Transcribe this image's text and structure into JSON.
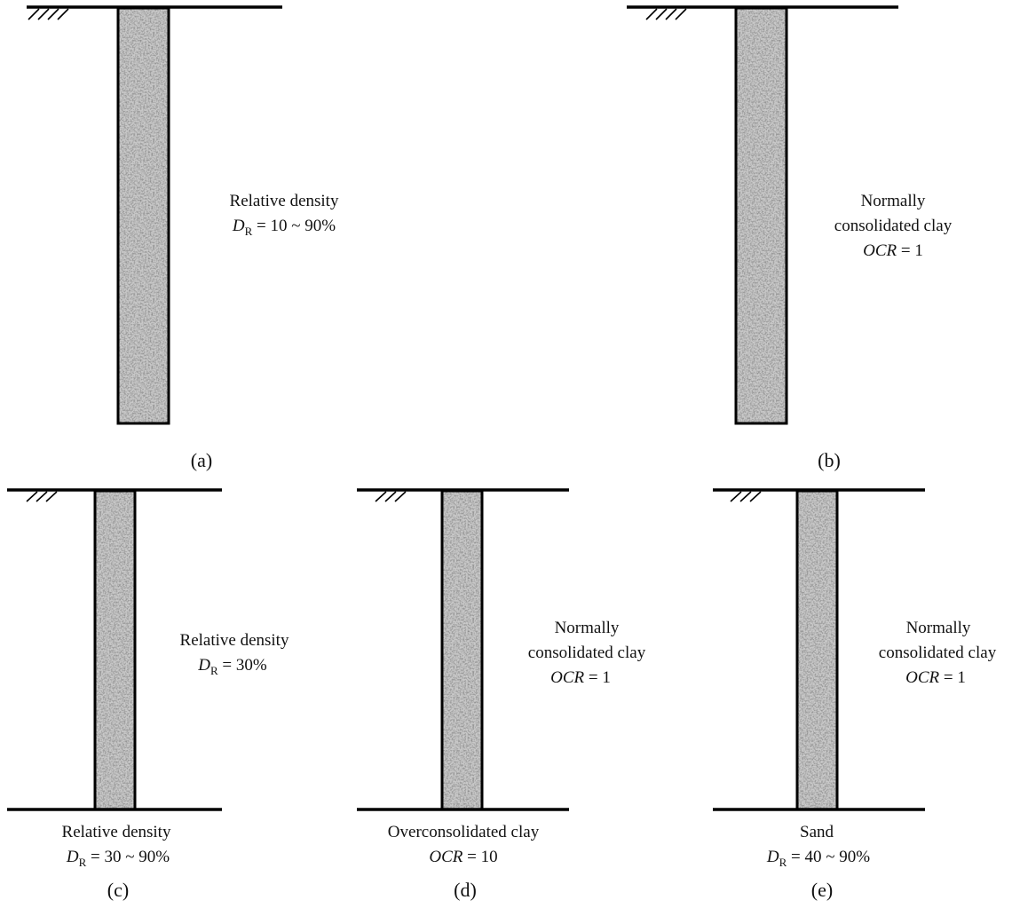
{
  "colors": {
    "ground_line": "#000000",
    "pile_fill": "#b8b8b8",
    "text": "#111111"
  },
  "icons": {
    "ground_hatch": "ground-hatch-icon",
    "pile_texture": "speckled-granular-texture"
  },
  "panels": [
    {
      "id": "a",
      "tag": "(a)",
      "side_label": {
        "line1": "Relative density",
        "line2_var": "D",
        "line2_sub": "R",
        "line2_rest": " = 10 ~ 90%"
      }
    },
    {
      "id": "b",
      "tag": "(b)",
      "side_label": {
        "line1": "Normally",
        "line2": "consolidated clay",
        "line3_var": "OCR",
        "line3_rest": " = 1"
      }
    },
    {
      "id": "c",
      "tag": "(c)",
      "side_label": {
        "line1": "Relative density",
        "line2_var": "D",
        "line2_sub": "R",
        "line2_rest": " = 30%"
      },
      "bottom_label": {
        "line1": "Relative density",
        "line2_var": "D",
        "line2_sub": "R",
        "line2_rest": " = 30 ~ 90%"
      }
    },
    {
      "id": "d",
      "tag": "(d)",
      "side_label": {
        "line1": "Normally",
        "line2": "consolidated clay",
        "line3_var": "OCR",
        "line3_rest": " = 1"
      },
      "bottom_label": {
        "line1": "Overconsolidated clay",
        "line2_var": "OCR",
        "line2_rest": " = 10"
      }
    },
    {
      "id": "e",
      "tag": "(e)",
      "side_label": {
        "line1": "Normally",
        "line2": "consolidated clay",
        "line3_var": "OCR",
        "line3_rest": " = 1"
      },
      "bottom_label": {
        "line1": "Sand",
        "line2_var": "D",
        "line2_sub": "R",
        "line2_rest": " = 40 ~ 90%"
      }
    }
  ]
}
